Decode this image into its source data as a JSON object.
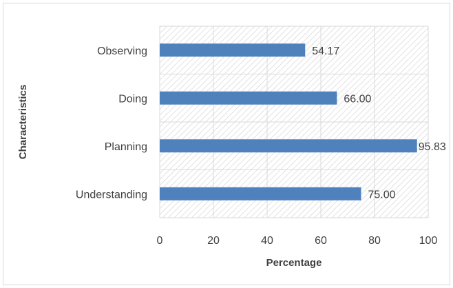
{
  "chart_data": {
    "type": "bar",
    "orientation": "horizontal",
    "categories": [
      "Understanding",
      "Planning",
      "Doing",
      "Observing"
    ],
    "values": [
      75.0,
      95.83,
      66.0,
      54.17
    ],
    "data_labels": [
      "75.00",
      "95.83",
      "66.00",
      "54.17"
    ],
    "xlabel": "Percentage",
    "ylabel": "Characteristics",
    "xlim": [
      0,
      100
    ],
    "xticks": [
      "0",
      "20",
      "40",
      "60",
      "80",
      "100"
    ],
    "grid": true,
    "legend": "none",
    "bar_color": "#4f81bd",
    "plot_pattern": "diagonal-hatch"
  }
}
